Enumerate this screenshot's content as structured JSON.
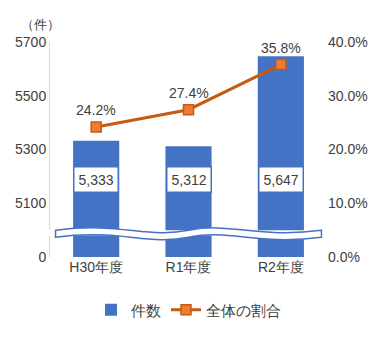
{
  "chart_data": {
    "type": "bar",
    "y_label": "（件）",
    "categories": [
      "H30年度",
      "R1年度",
      "R2年度"
    ],
    "series": [
      {
        "name": "件数",
        "type": "bar",
        "color": "#4472c4",
        "values": [
          5333,
          5312,
          5647
        ],
        "value_labels": [
          "5,333",
          "5,312",
          "5,647"
        ]
      },
      {
        "name": "全体の割合",
        "type": "line",
        "color": "#c55a11",
        "marker": "square",
        "axis": "y2",
        "values": [
          24.2,
          27.4,
          35.8
        ],
        "value_labels": [
          "24.2%",
          "27.4%",
          "35.8%"
        ]
      }
    ],
    "ylim": [
      0,
      5700
    ],
    "yticks": [
      0,
      5100,
      5300,
      5500,
      5700
    ],
    "y2lim": [
      0,
      40
    ],
    "y2ticks": [
      {
        "value": 0,
        "label": "0.0%"
      },
      {
        "value": 10,
        "label": "10.0%"
      },
      {
        "value": 20,
        "label": "20.0%"
      },
      {
        "value": 30,
        "label": "30.0%"
      },
      {
        "value": 40,
        "label": "40.0%"
      }
    ],
    "data_labels": true,
    "legend": "bottom",
    "grid": false
  }
}
